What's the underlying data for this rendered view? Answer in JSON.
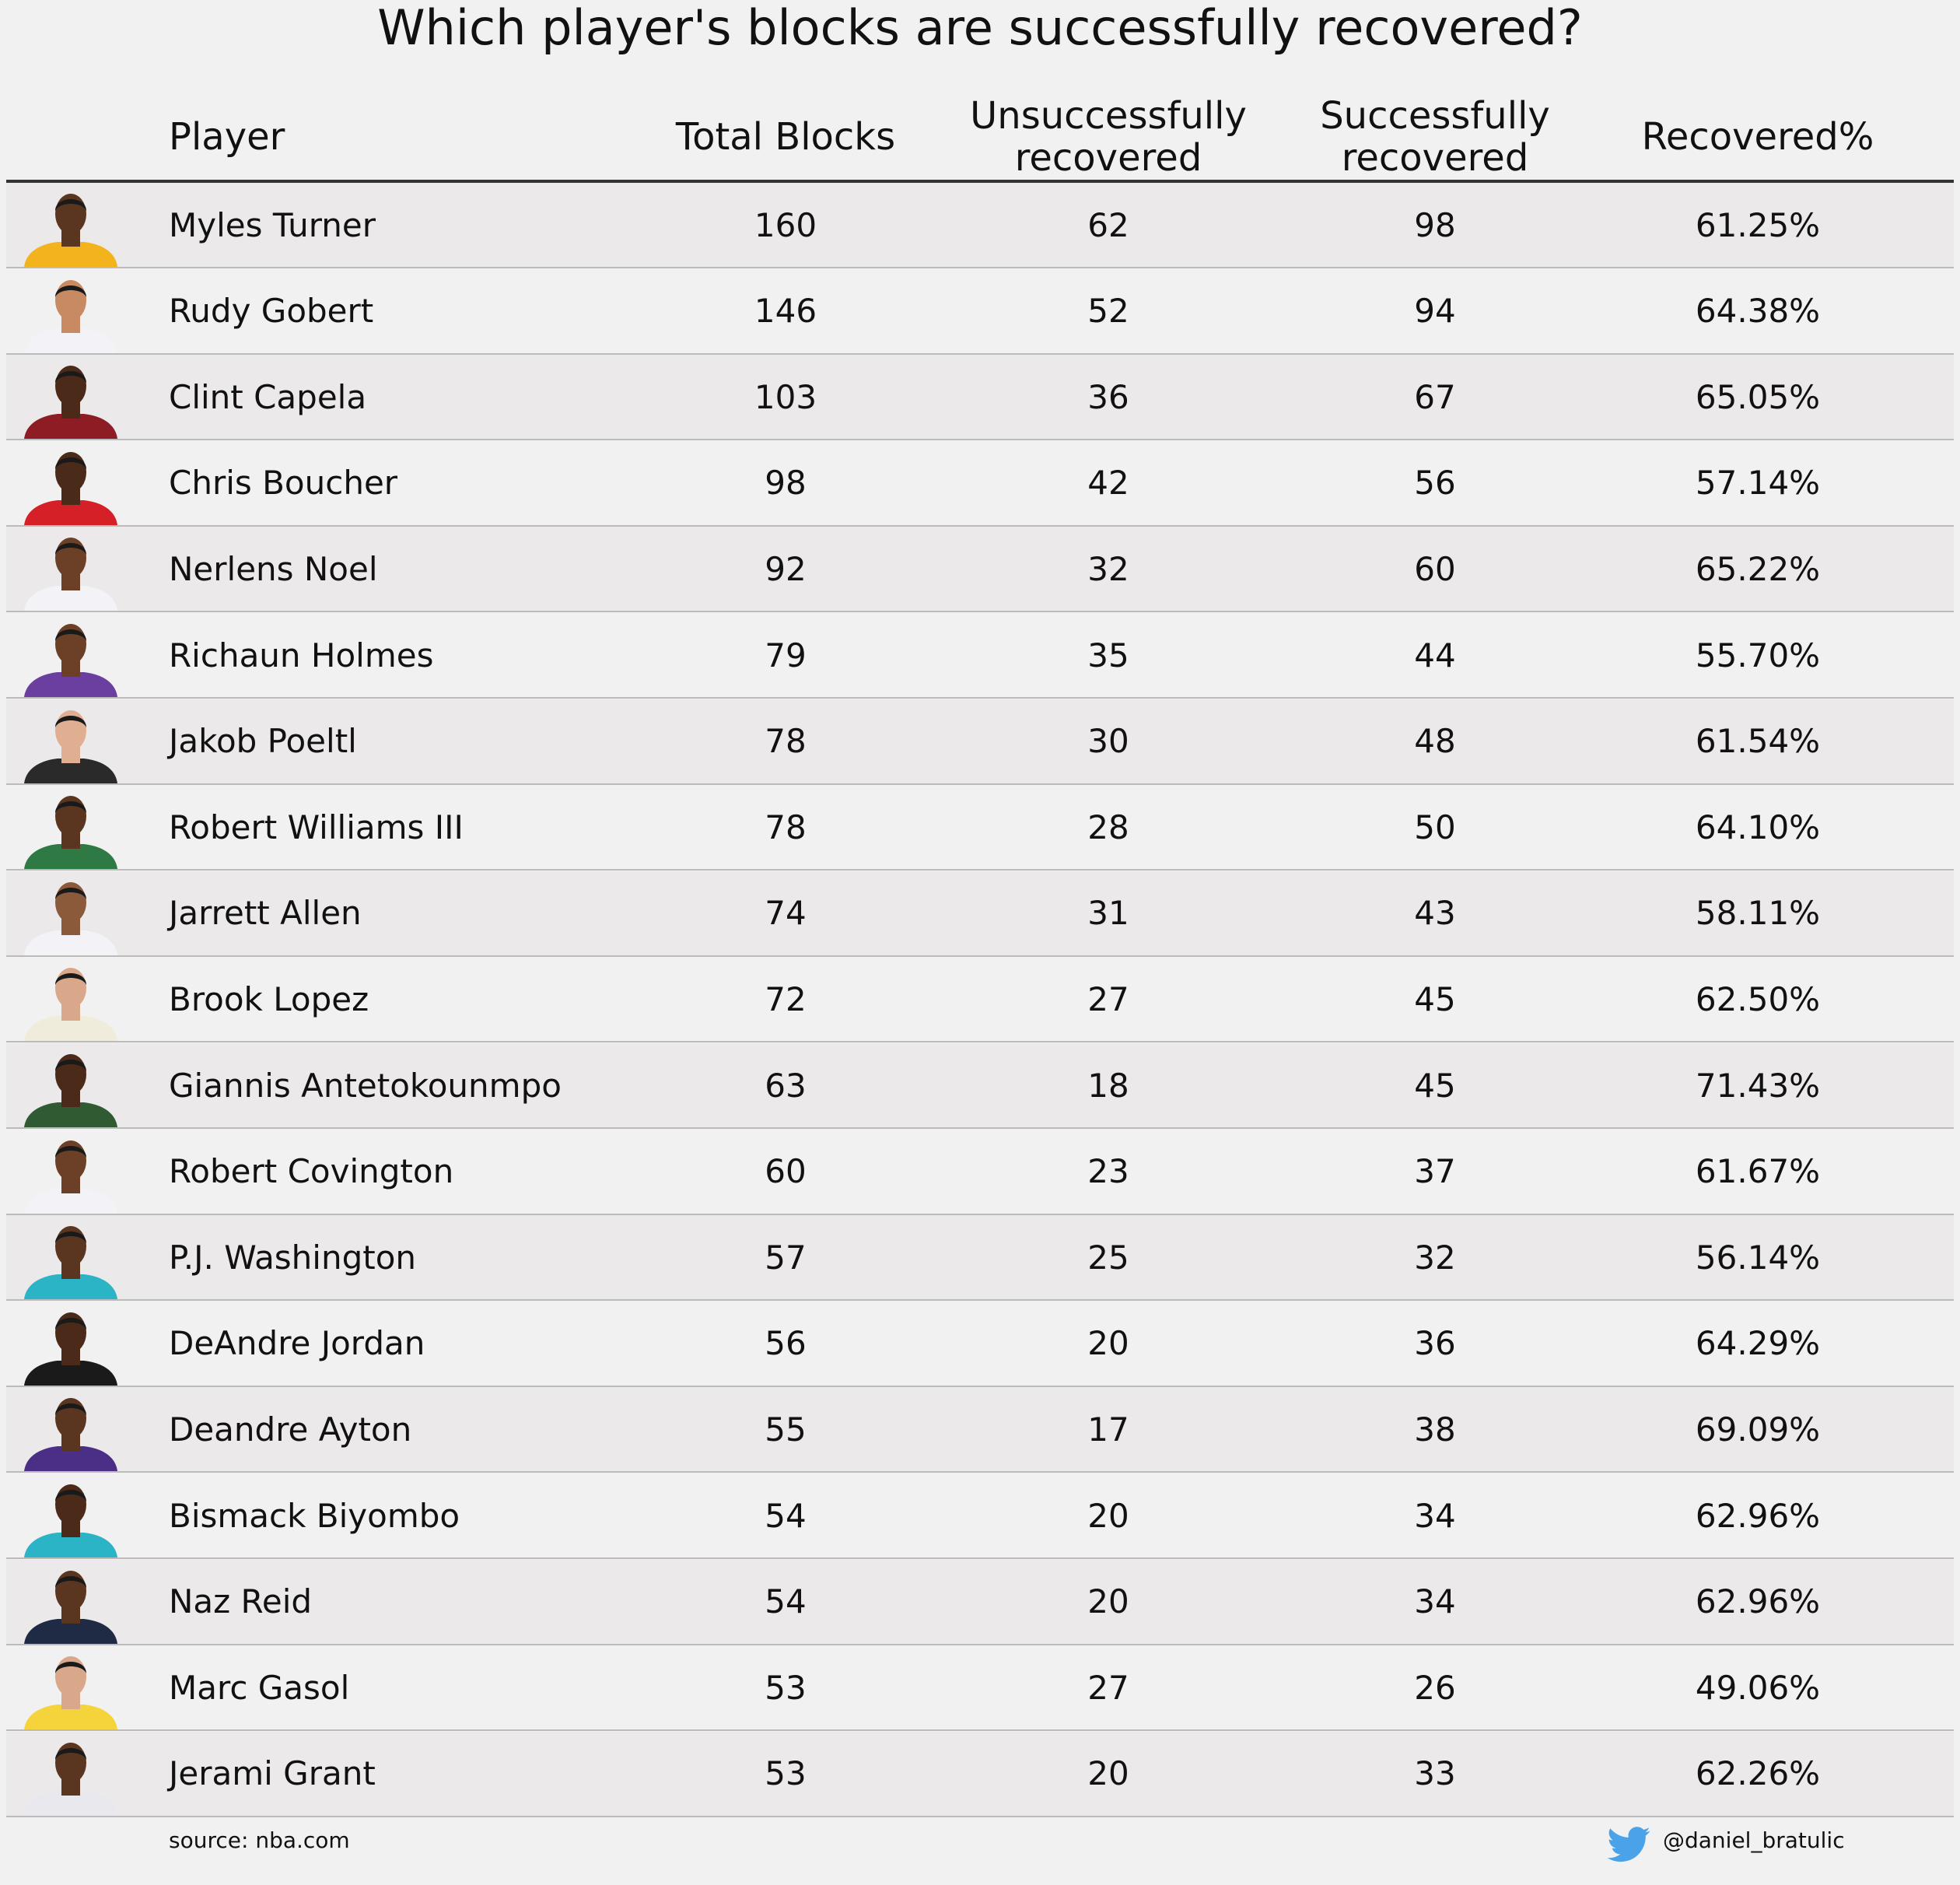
{
  "chart_data": {
    "type": "table",
    "title": "Which player's blocks are successfully recovered?",
    "columns": [
      "Player",
      "Total Blocks",
      "Unsuccessfully recovered",
      "Successfully recovered",
      "Recovered%"
    ],
    "rows": [
      {
        "player": "Myles Turner",
        "total": "160",
        "unsuccessful": "62",
        "successful": "98",
        "pct": "61.25%",
        "jersey": "#f2b31d",
        "skin": "#5a3520"
      },
      {
        "player": "Rudy Gobert",
        "total": "146",
        "unsuccessful": "52",
        "successful": "94",
        "pct": "64.38%",
        "jersey": "#f3f3f7",
        "skin": "#c88a62"
      },
      {
        "player": "Clint Capela",
        "total": "103",
        "unsuccessful": "36",
        "successful": "67",
        "pct": "65.05%",
        "jersey": "#8d1c24",
        "skin": "#4b2a1a"
      },
      {
        "player": "Chris Boucher",
        "total": "98",
        "unsuccessful": "42",
        "successful": "56",
        "pct": "57.14%",
        "jersey": "#d62027",
        "skin": "#4a2a19"
      },
      {
        "player": "Nerlens Noel",
        "total": "92",
        "unsuccessful": "32",
        "successful": "60",
        "pct": "65.22%",
        "jersey": "#f3f3f7",
        "skin": "#6b4026"
      },
      {
        "player": "Richaun Holmes",
        "total": "79",
        "unsuccessful": "35",
        "successful": "44",
        "pct": "55.70%",
        "jersey": "#6a3fa0",
        "skin": "#6b4026"
      },
      {
        "player": "Jakob Poeltl",
        "total": "78",
        "unsuccessful": "30",
        "successful": "48",
        "pct": "61.54%",
        "jersey": "#2a2a2a",
        "skin": "#e0ae90"
      },
      {
        "player": "Robert Williams III",
        "total": "78",
        "unsuccessful": "28",
        "successful": "50",
        "pct": "64.10%",
        "jersey": "#2f7a44",
        "skin": "#5a3520"
      },
      {
        "player": "Jarrett Allen",
        "total": "74",
        "unsuccessful": "31",
        "successful": "43",
        "pct": "58.11%",
        "jersey": "#f3f3f7",
        "skin": "#8a5a3a"
      },
      {
        "player": "Brook Lopez",
        "total": "72",
        "unsuccessful": "27",
        "successful": "45",
        "pct": "62.50%",
        "jersey": "#f0ecdc",
        "skin": "#d9a88a"
      },
      {
        "player": "Giannis Antetokounmpo",
        "total": "63",
        "unsuccessful": "18",
        "successful": "45",
        "pct": "71.43%",
        "jersey": "#2f5a32",
        "skin": "#4b2a1a"
      },
      {
        "player": "Robert Covington",
        "total": "60",
        "unsuccessful": "23",
        "successful": "37",
        "pct": "61.67%",
        "jersey": "#f3f3f7",
        "skin": "#6b4026"
      },
      {
        "player": "P.J. Washington",
        "total": "57",
        "unsuccessful": "25",
        "successful": "32",
        "pct": "56.14%",
        "jersey": "#2bb3c6",
        "skin": "#5a3520"
      },
      {
        "player": "DeAndre Jordan",
        "total": "56",
        "unsuccessful": "20",
        "successful": "36",
        "pct": "64.29%",
        "jersey": "#1a1a1a",
        "skin": "#4b2a1a"
      },
      {
        "player": "Deandre Ayton",
        "total": "55",
        "unsuccessful": "17",
        "successful": "38",
        "pct": "69.09%",
        "jersey": "#4b2f86",
        "skin": "#5a3520"
      },
      {
        "player": "Bismack Biyombo",
        "total": "54",
        "unsuccessful": "20",
        "successful": "34",
        "pct": "62.96%",
        "jersey": "#2bb3c6",
        "skin": "#4b2a1a"
      },
      {
        "player": "Naz Reid",
        "total": "54",
        "unsuccessful": "20",
        "successful": "34",
        "pct": "62.96%",
        "jersey": "#1f2a44",
        "skin": "#5a3520"
      },
      {
        "player": "Marc Gasol",
        "total": "53",
        "unsuccessful": "27",
        "successful": "26",
        "pct": "49.06%",
        "jersey": "#f5d33a",
        "skin": "#d9a88a"
      },
      {
        "player": "Jerami Grant",
        "total": "53",
        "unsuccessful": "20",
        "successful": "33",
        "pct": "62.26%",
        "jersey": "#e8e8ee",
        "skin": "#5a3520"
      }
    ],
    "row_shading": "alternate",
    "grid": false
  },
  "footer": {
    "source": "source: nba.com",
    "handle": "@daniel_bratulic",
    "handle_icon": "twitter-bird-icon",
    "icon_color": "#4aa3e8"
  }
}
